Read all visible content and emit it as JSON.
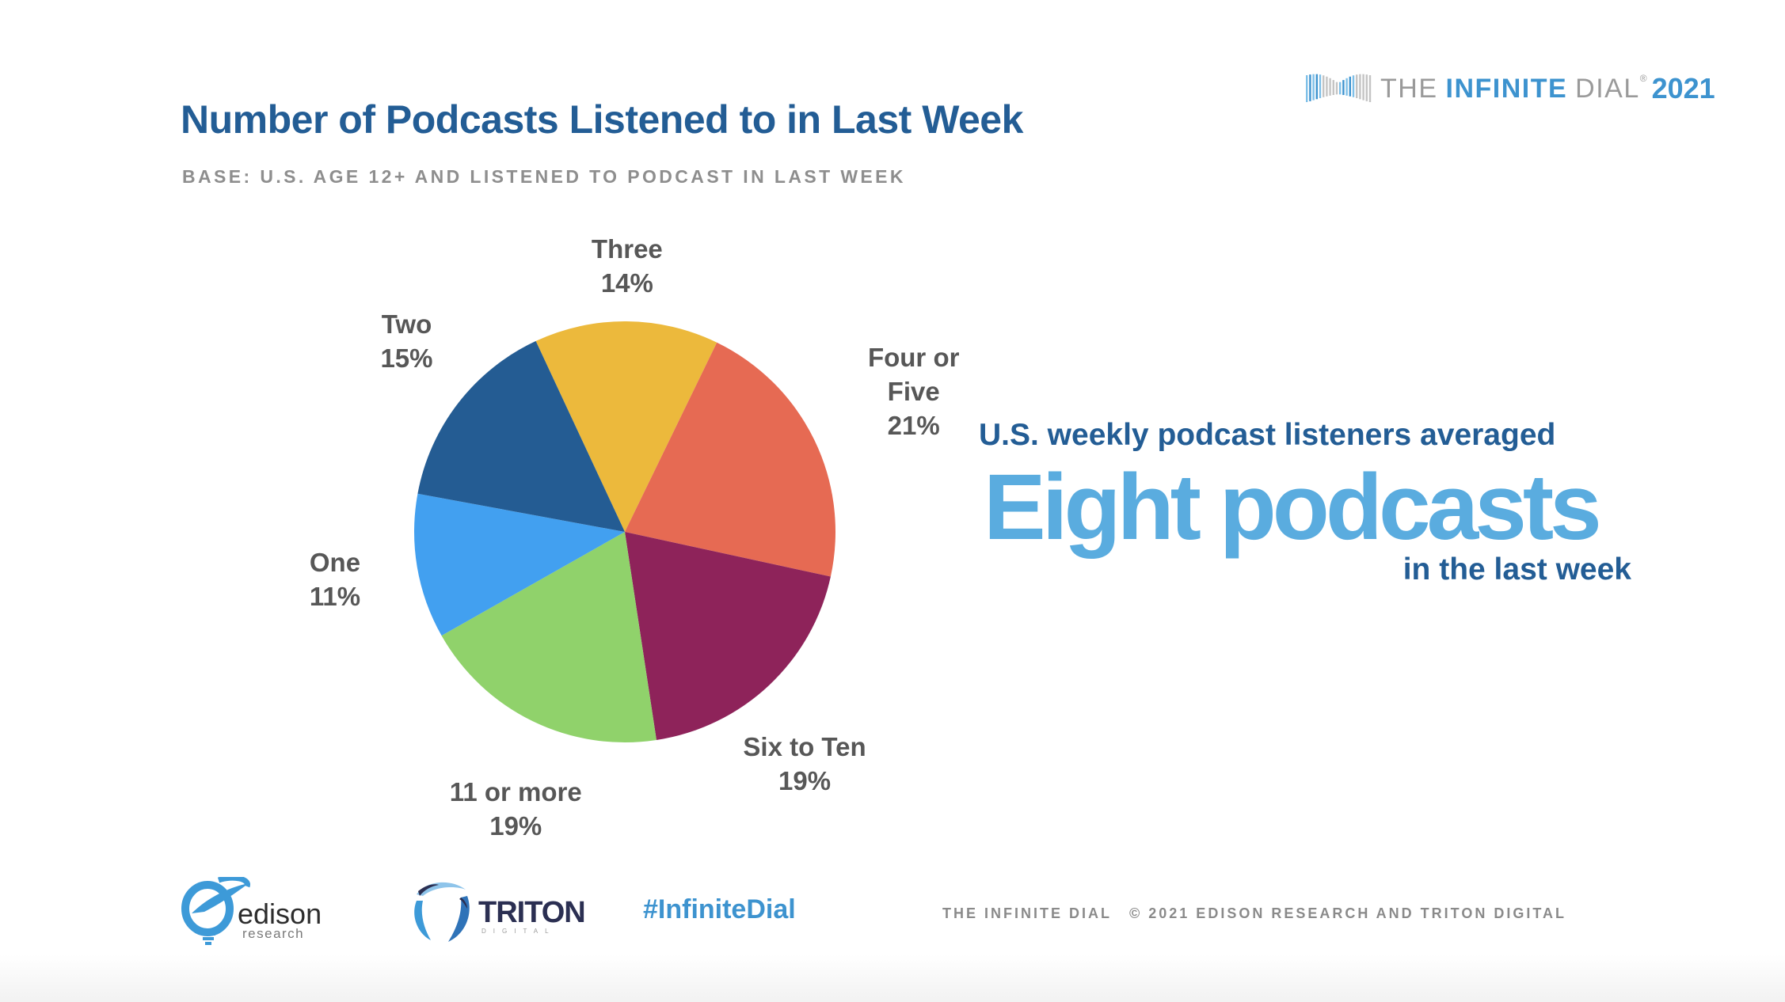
{
  "header": {
    "title": "Number of Podcasts Listened to in Last Week",
    "subtitle": "BASE: U.S. AGE 12+ AND LISTENED TO PODCAST IN LAST WEEK",
    "brand": {
      "the": "THE",
      "infinite": "INFINITE",
      "dial": "DIAL",
      "registered": "®",
      "year": "2021",
      "icon": "infinity-icon"
    }
  },
  "chart_data": {
    "type": "pie",
    "title": "Number of Podcasts Listened to in Last Week",
    "subtitle": "BASE: U.S. AGE 12+ AND LISTENED TO PODCAST IN LAST WEEK",
    "unit": "%",
    "start_angle_deg": -25,
    "direction": "clockwise",
    "slices": [
      {
        "name": "three",
        "label_lines": [
          "Three"
        ],
        "value": 14,
        "display": "14%",
        "color": "#ecb93c"
      },
      {
        "name": "four-or-five",
        "label_lines": [
          "Four or",
          "Five"
        ],
        "value": 21,
        "display": "21%",
        "color": "#e66a53"
      },
      {
        "name": "six-to-ten",
        "label_lines": [
          "Six to Ten"
        ],
        "value": 19,
        "display": "19%",
        "color": "#8e235a"
      },
      {
        "name": "eleven-or-more",
        "label_lines": [
          "11 or more"
        ],
        "value": 19,
        "display": "19%",
        "color": "#90d26b"
      },
      {
        "name": "one",
        "label_lines": [
          "One"
        ],
        "value": 11,
        "display": "11%",
        "color": "#42a0f0"
      },
      {
        "name": "two",
        "label_lines": [
          "Two"
        ],
        "value": 15,
        "display": "15%",
        "color": "#245c93"
      }
    ],
    "legend": "none (direct labels)"
  },
  "callout": {
    "lead": "U.S. weekly podcast listeners averaged",
    "highlight": "Eight podcasts",
    "tail": "in the last week"
  },
  "footer": {
    "edison_word": "edison",
    "edison_sub": "research",
    "triton_word": "TRITON",
    "triton_sub": "DIGITAL",
    "hashtag": "#InfiniteDial",
    "copyright_left": "THE INFINITE DIAL",
    "copyright_right": "© 2021 EDISON RESEARCH AND TRITON DIGITAL"
  },
  "colors": {
    "title": "#235d95",
    "accent": "#5aacdf",
    "brand_blue": "#3d93cf",
    "label_gray": "#575757"
  }
}
